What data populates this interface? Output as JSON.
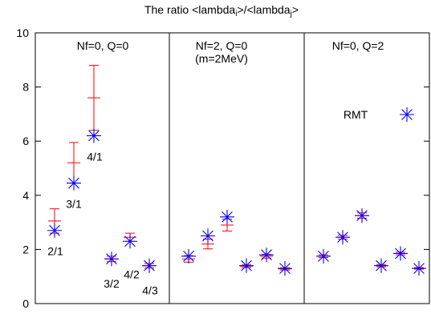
{
  "chart_data": {
    "type": "scatter",
    "title_main": "The ratio <lambda",
    "title_sub_i": "i",
    "title_mid": ">/<lambda",
    "title_sub_j": "j",
    "title_end": ">",
    "xlabel": "",
    "ylabel": "",
    "ylim": [
      0,
      10
    ],
    "y_ticks": [
      0,
      2,
      4,
      6,
      8,
      10
    ],
    "x_ticks_shown": false,
    "grid": false,
    "panels": [
      {
        "label_line1": "Nf=0, Q=0",
        "label_line2": "",
        "points": [
          {
            "ratio": "2/1",
            "rmt": 2.7,
            "data": 3.05,
            "err": 0.45
          },
          {
            "ratio": "3/1",
            "rmt": 4.45,
            "data": 5.2,
            "err": 0.75
          },
          {
            "ratio": "4/1",
            "rmt": 6.2,
            "data": 7.6,
            "err": 1.2
          },
          {
            "ratio": "3/2",
            "rmt": 1.65,
            "data": 1.65,
            "err": 0.1
          },
          {
            "ratio": "4/2",
            "rmt": 2.3,
            "data": 2.45,
            "err": 0.15
          },
          {
            "ratio": "4/3",
            "rmt": 1.4,
            "data": 1.4,
            "err": 0.08
          }
        ]
      },
      {
        "label_line1": "Nf=2, Q=0",
        "label_line2": "(m=2MeV)",
        "points": [
          {
            "ratio": "2/1",
            "rmt": 1.75,
            "data": 1.65,
            "err": 0.12
          },
          {
            "ratio": "3/1",
            "rmt": 2.5,
            "data": 2.2,
            "err": 0.18
          },
          {
            "ratio": "4/1",
            "rmt": 3.2,
            "data": 2.9,
            "err": 0.22
          },
          {
            "ratio": "3/2",
            "rmt": 1.4,
            "data": 1.38,
            "err": 0.05
          },
          {
            "ratio": "4/2",
            "rmt": 1.8,
            "data": 1.75,
            "err": 0.07
          },
          {
            "ratio": "4/3",
            "rmt": 1.3,
            "data": 1.28,
            "err": 0.04
          }
        ]
      },
      {
        "label_line1": "Nf=0, Q=2",
        "label_line2": "",
        "points": [
          {
            "ratio": "2/1",
            "rmt": 1.75,
            "data": 1.75,
            "err": 0.05
          },
          {
            "ratio": "3/1",
            "rmt": 2.45,
            "data": 2.45,
            "err": 0.07
          },
          {
            "ratio": "4/1",
            "rmt": 3.25,
            "data": 3.25,
            "err": 0.1
          },
          {
            "ratio": "3/2",
            "rmt": 1.4,
            "data": 1.4,
            "err": 0.04
          },
          {
            "ratio": "4/2",
            "rmt": 1.85,
            "data": 1.85,
            "err": 0.05
          },
          {
            "ratio": "4/3",
            "rmt": 1.3,
            "data": 1.3,
            "err": 0.03
          }
        ]
      }
    ],
    "point_labels_panel1": [
      "2/1",
      "3/1",
      "4/1",
      "3/2",
      "4/2",
      "4/3"
    ],
    "series": [
      {
        "name": "RMT",
        "color": "#0000ff",
        "marker": "asterisk"
      },
      {
        "color": "#ff0000",
        "marker": "plus-errorbar"
      }
    ],
    "legend_position": "top-right of third panel"
  }
}
